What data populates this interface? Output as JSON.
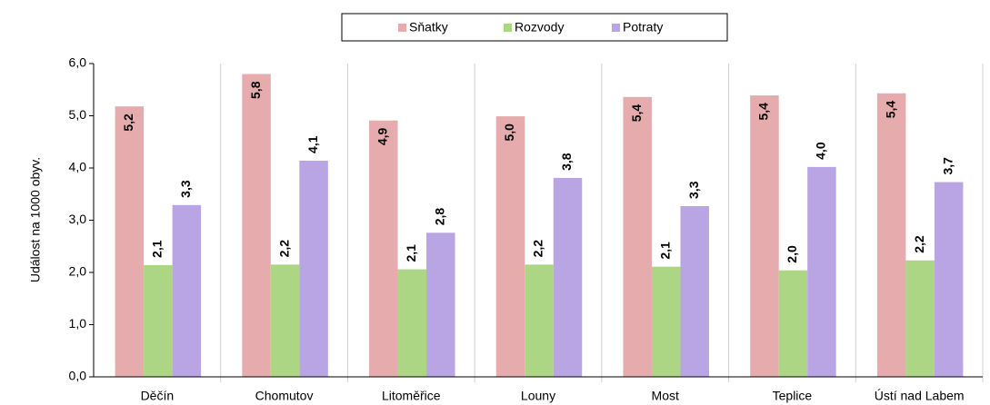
{
  "chart_data": {
    "type": "bar",
    "y_axis_label": "Událost na 1000 obyv.",
    "categories": [
      "Děčín",
      "Chomutov",
      "Litoměřice",
      "Louny",
      "Most",
      "Teplice",
      "Ústí nad Labem"
    ],
    "series": [
      {
        "name": "Sňatky",
        "color": "#e6acad",
        "label_color": "#c00000",
        "label_position": "inside",
        "values": [
          5.18,
          5.8,
          4.91,
          4.99,
          5.36,
          5.39,
          5.43
        ],
        "value_labels": [
          "5,2",
          "5,8",
          "4,9",
          "5,0",
          "5,4",
          "5,4",
          "5,4"
        ]
      },
      {
        "name": "Rozvody",
        "color": "#acd584",
        "label_color": "#4e8a1e",
        "label_position": "outside",
        "values": [
          2.14,
          2.15,
          2.06,
          2.15,
          2.11,
          2.04,
          2.23
        ],
        "value_labels": [
          "2,1",
          "2,2",
          "2,1",
          "2,2",
          "2,1",
          "2,0",
          "2,2"
        ]
      },
      {
        "name": "Potraty",
        "color": "#b9a5e3",
        "label_color": "#7030a0",
        "label_position": "outside",
        "values": [
          3.29,
          4.14,
          2.76,
          3.81,
          3.27,
          4.02,
          3.73
        ],
        "value_labels": [
          "3,3",
          "4,1",
          "2,8",
          "3,8",
          "3,3",
          "4,0",
          "3,7"
        ]
      }
    ],
    "ylim": [
      0,
      6
    ],
    "yticks": [
      {
        "value": 0,
        "label": "0,0"
      },
      {
        "value": 1,
        "label": "1,0"
      },
      {
        "value": 2,
        "label": "2,0"
      },
      {
        "value": 3,
        "label": "3,0"
      },
      {
        "value": 4,
        "label": "4,0"
      },
      {
        "value": 5,
        "label": "5,0"
      },
      {
        "value": 6,
        "label": "6,0"
      }
    ],
    "legend": "top"
  }
}
